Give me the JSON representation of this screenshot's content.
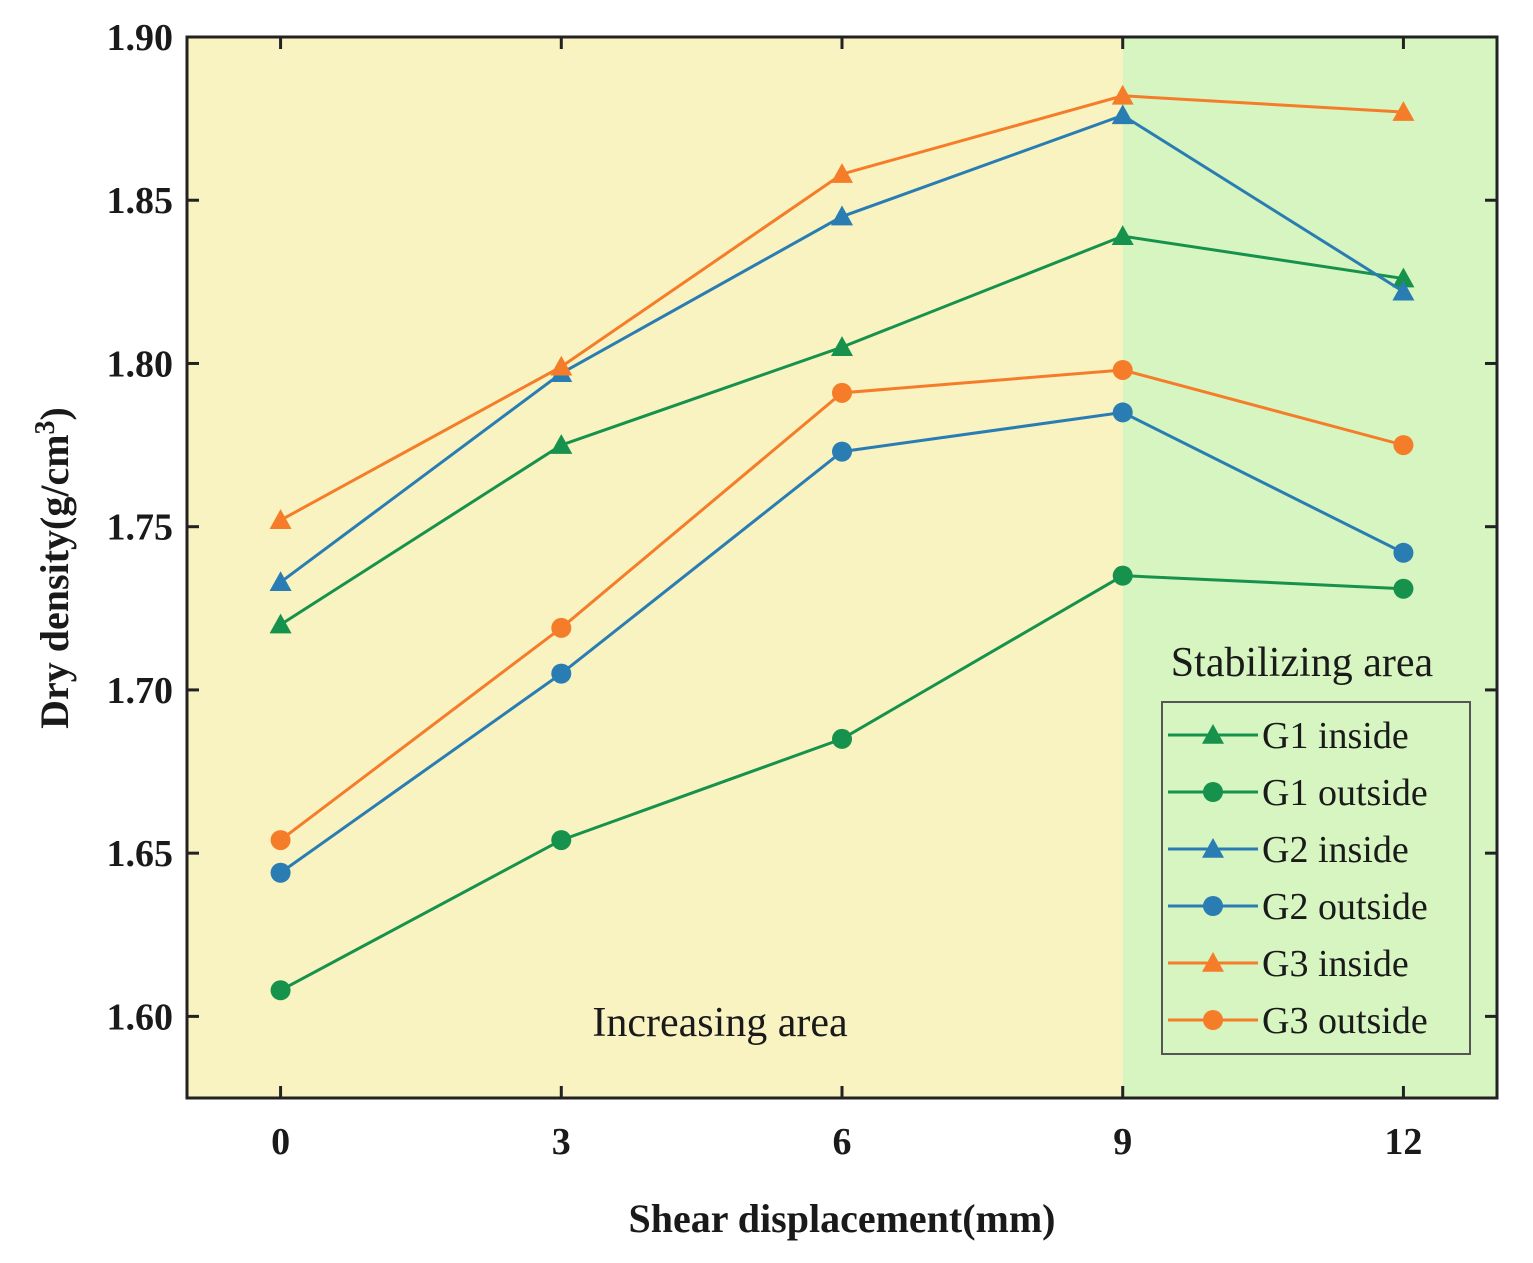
{
  "chart_data": {
    "type": "line",
    "xlabel": "Shear displacement(mm)",
    "ylabel_main": "Dry density(g/cm",
    "ylabel_sup": "3",
    "ylabel_close": ")",
    "x": [
      0,
      3,
      6,
      9,
      12
    ],
    "x_tick_labels": [
      "0",
      "3",
      "6",
      "9",
      "12"
    ],
    "xlim": [
      -1,
      13
    ],
    "ylim": [
      1.575,
      1.9
    ],
    "y_ticks": [
      1.6,
      1.65,
      1.7,
      1.75,
      1.8,
      1.85,
      1.9
    ],
    "y_tick_labels": [
      "1.60",
      "1.65",
      "1.70",
      "1.75",
      "1.80",
      "1.85",
      "1.90"
    ],
    "regions": [
      {
        "label": "Increasing area",
        "x_from": -1,
        "x_to": 9,
        "color": "#f8f3c0"
      },
      {
        "label": "Stabilizing area",
        "x_from": 9,
        "x_to": 13,
        "color": "#d6f5c0"
      }
    ],
    "legend_position": "bottom-right",
    "series": [
      {
        "name": "G1 inside",
        "marker": "triangle",
        "color": "#16924c",
        "values": [
          1.72,
          1.775,
          1.805,
          1.839,
          1.826
        ]
      },
      {
        "name": "G1 outside",
        "marker": "circle",
        "color": "#16924c",
        "values": [
          1.608,
          1.654,
          1.685,
          1.735,
          1.731
        ]
      },
      {
        "name": "G2 inside",
        "marker": "triangle",
        "color": "#2a7db3",
        "values": [
          1.733,
          1.797,
          1.845,
          1.876,
          1.822
        ]
      },
      {
        "name": "G2 outside",
        "marker": "circle",
        "color": "#2a7db3",
        "values": [
          1.644,
          1.705,
          1.773,
          1.785,
          1.742
        ]
      },
      {
        "name": "G3 inside",
        "marker": "triangle",
        "color": "#f57d2a",
        "values": [
          1.752,
          1.799,
          1.858,
          1.882,
          1.877
        ]
      },
      {
        "name": "G3 outside",
        "marker": "circle",
        "color": "#f57d2a",
        "values": [
          1.654,
          1.719,
          1.791,
          1.798,
          1.775
        ]
      }
    ]
  }
}
